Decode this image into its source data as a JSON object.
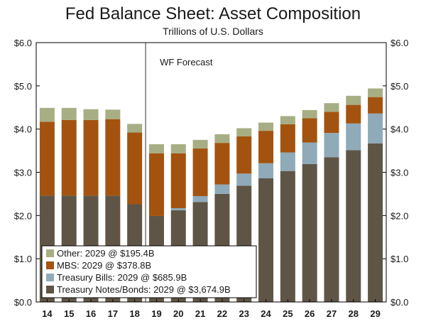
{
  "chart_data": {
    "type": "bar",
    "stacked": true,
    "title": "Fed Balance Sheet: Asset Composition",
    "subtitle": "Trillions of U.S. Dollars",
    "categories": [
      "14",
      "15",
      "16",
      "17",
      "18",
      "19",
      "20",
      "21",
      "22",
      "23",
      "24",
      "25",
      "26",
      "27",
      "28",
      "29"
    ],
    "ylim": [
      0,
      6
    ],
    "y_ticks": [
      0,
      1,
      2,
      3,
      4,
      5,
      6
    ],
    "y_tick_labels": [
      "$0.0",
      "$1.0",
      "$2.0",
      "$3.0",
      "$4.0",
      "$5.0",
      "$6.0"
    ],
    "forecast_divider_after": "18",
    "annotation": "WF Forecast",
    "series": [
      {
        "name": "Treasury Notes/Bonds",
        "color": "#5f5546",
        "values": [
          2.46,
          2.46,
          2.46,
          2.46,
          2.26,
          1.99,
          2.12,
          2.31,
          2.5,
          2.69,
          2.86,
          3.03,
          3.19,
          3.35,
          3.51,
          3.67
        ]
      },
      {
        "name": "Treasury Bills",
        "color": "#8faab9",
        "values": [
          0.0,
          0.0,
          0.0,
          0.0,
          0.0,
          0.0,
          0.05,
          0.14,
          0.22,
          0.28,
          0.35,
          0.43,
          0.5,
          0.56,
          0.62,
          0.69
        ]
      },
      {
        "name": "MBS",
        "color": "#a3530f",
        "values": [
          1.71,
          1.75,
          1.75,
          1.77,
          1.66,
          1.45,
          1.27,
          1.1,
          0.96,
          0.86,
          0.75,
          0.65,
          0.56,
          0.49,
          0.43,
          0.38
        ]
      },
      {
        "name": "Other",
        "color": "#a8ae84",
        "values": [
          0.32,
          0.28,
          0.25,
          0.22,
          0.2,
          0.21,
          0.21,
          0.2,
          0.2,
          0.19,
          0.19,
          0.19,
          0.19,
          0.2,
          0.21,
          0.2
        ]
      }
    ],
    "legend": {
      "placement": "bottom-left",
      "entries": [
        {
          "label": "Other: 2029 @ $195.4B",
          "color": "#a8ae84"
        },
        {
          "label": "MBS: 2029 @ $378.8B",
          "color": "#a3530f"
        },
        {
          "label": "Treasury Bills: 2029 @ $685.9B",
          "color": "#8faab9"
        },
        {
          "label": "Treasury Notes/Bonds: 2029 @ $3,674.9B",
          "color": "#5f5546"
        }
      ]
    }
  }
}
